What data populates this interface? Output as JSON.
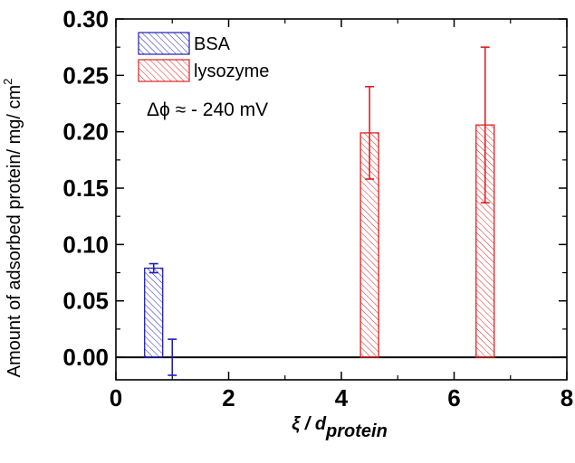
{
  "chart_data": {
    "type": "bar",
    "xlabel_main": "ξ / d",
    "xlabel_sub": "protein",
    "ylabel": "Amount of adsorbed protein/ mg/ cm",
    "ylabel_sup": "2",
    "xlim": [
      0,
      8
    ],
    "ylim": [
      -0.02,
      0.3
    ],
    "xticks": [
      "0",
      "2",
      "4",
      "6",
      "8"
    ],
    "xtick_values": [
      0,
      2,
      4,
      6,
      8
    ],
    "yticks": [
      "0.00",
      "0.05",
      "0.10",
      "0.15",
      "0.20",
      "0.25",
      "0.30"
    ],
    "ytick_values": [
      0.0,
      0.05,
      0.1,
      0.15,
      0.2,
      0.25,
      0.3
    ],
    "legend_position": "top-left",
    "annotation": "Δϕ ≈ - 240 mV",
    "series": [
      {
        "name": "BSA",
        "color": "#1f1fb4",
        "points": [
          {
            "x": 0.67,
            "y": 0.079,
            "err": 0.004,
            "bar": true
          },
          {
            "x": 1.0,
            "y": 0.0,
            "err": 0.016,
            "bar": false
          }
        ]
      },
      {
        "name": "lysozyme",
        "color": "#e02020",
        "points": [
          {
            "x": 4.5,
            "y": 0.199,
            "err": 0.041,
            "bar": true
          },
          {
            "x": 6.55,
            "y": 0.206,
            "err": 0.069,
            "bar": true
          }
        ]
      }
    ],
    "zero_line": true
  }
}
